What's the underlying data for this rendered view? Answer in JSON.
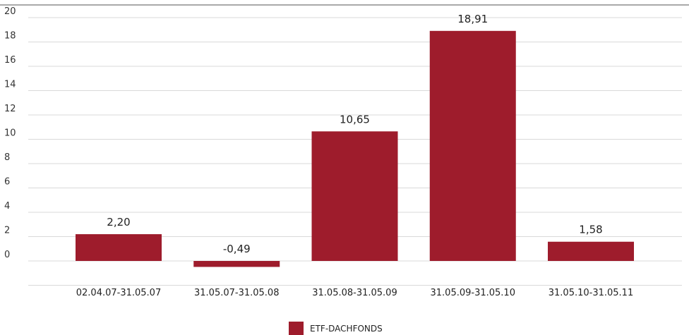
{
  "chart_data": {
    "type": "bar",
    "categories": [
      "02.04.07-31.05.07",
      "31.05.07-31.05.08",
      "31.05.08-31.05.09",
      "31.05.09-31.05.10",
      "31.05.10-31.05.11"
    ],
    "series": [
      {
        "name": "ETF-DACHFONDS",
        "values": [
          2.2,
          -0.49,
          10.65,
          18.91,
          1.58
        ],
        "labels": [
          "2,20",
          "-0,49",
          "10,65",
          "18,91",
          "1,58"
        ],
        "color": "#9e1c2c"
      }
    ],
    "ylim": [
      -2,
      20
    ],
    "yticks": [
      0,
      2,
      4,
      6,
      8,
      10,
      12,
      14,
      16,
      18,
      20
    ],
    "grid": true,
    "legend": "bottom-center"
  }
}
